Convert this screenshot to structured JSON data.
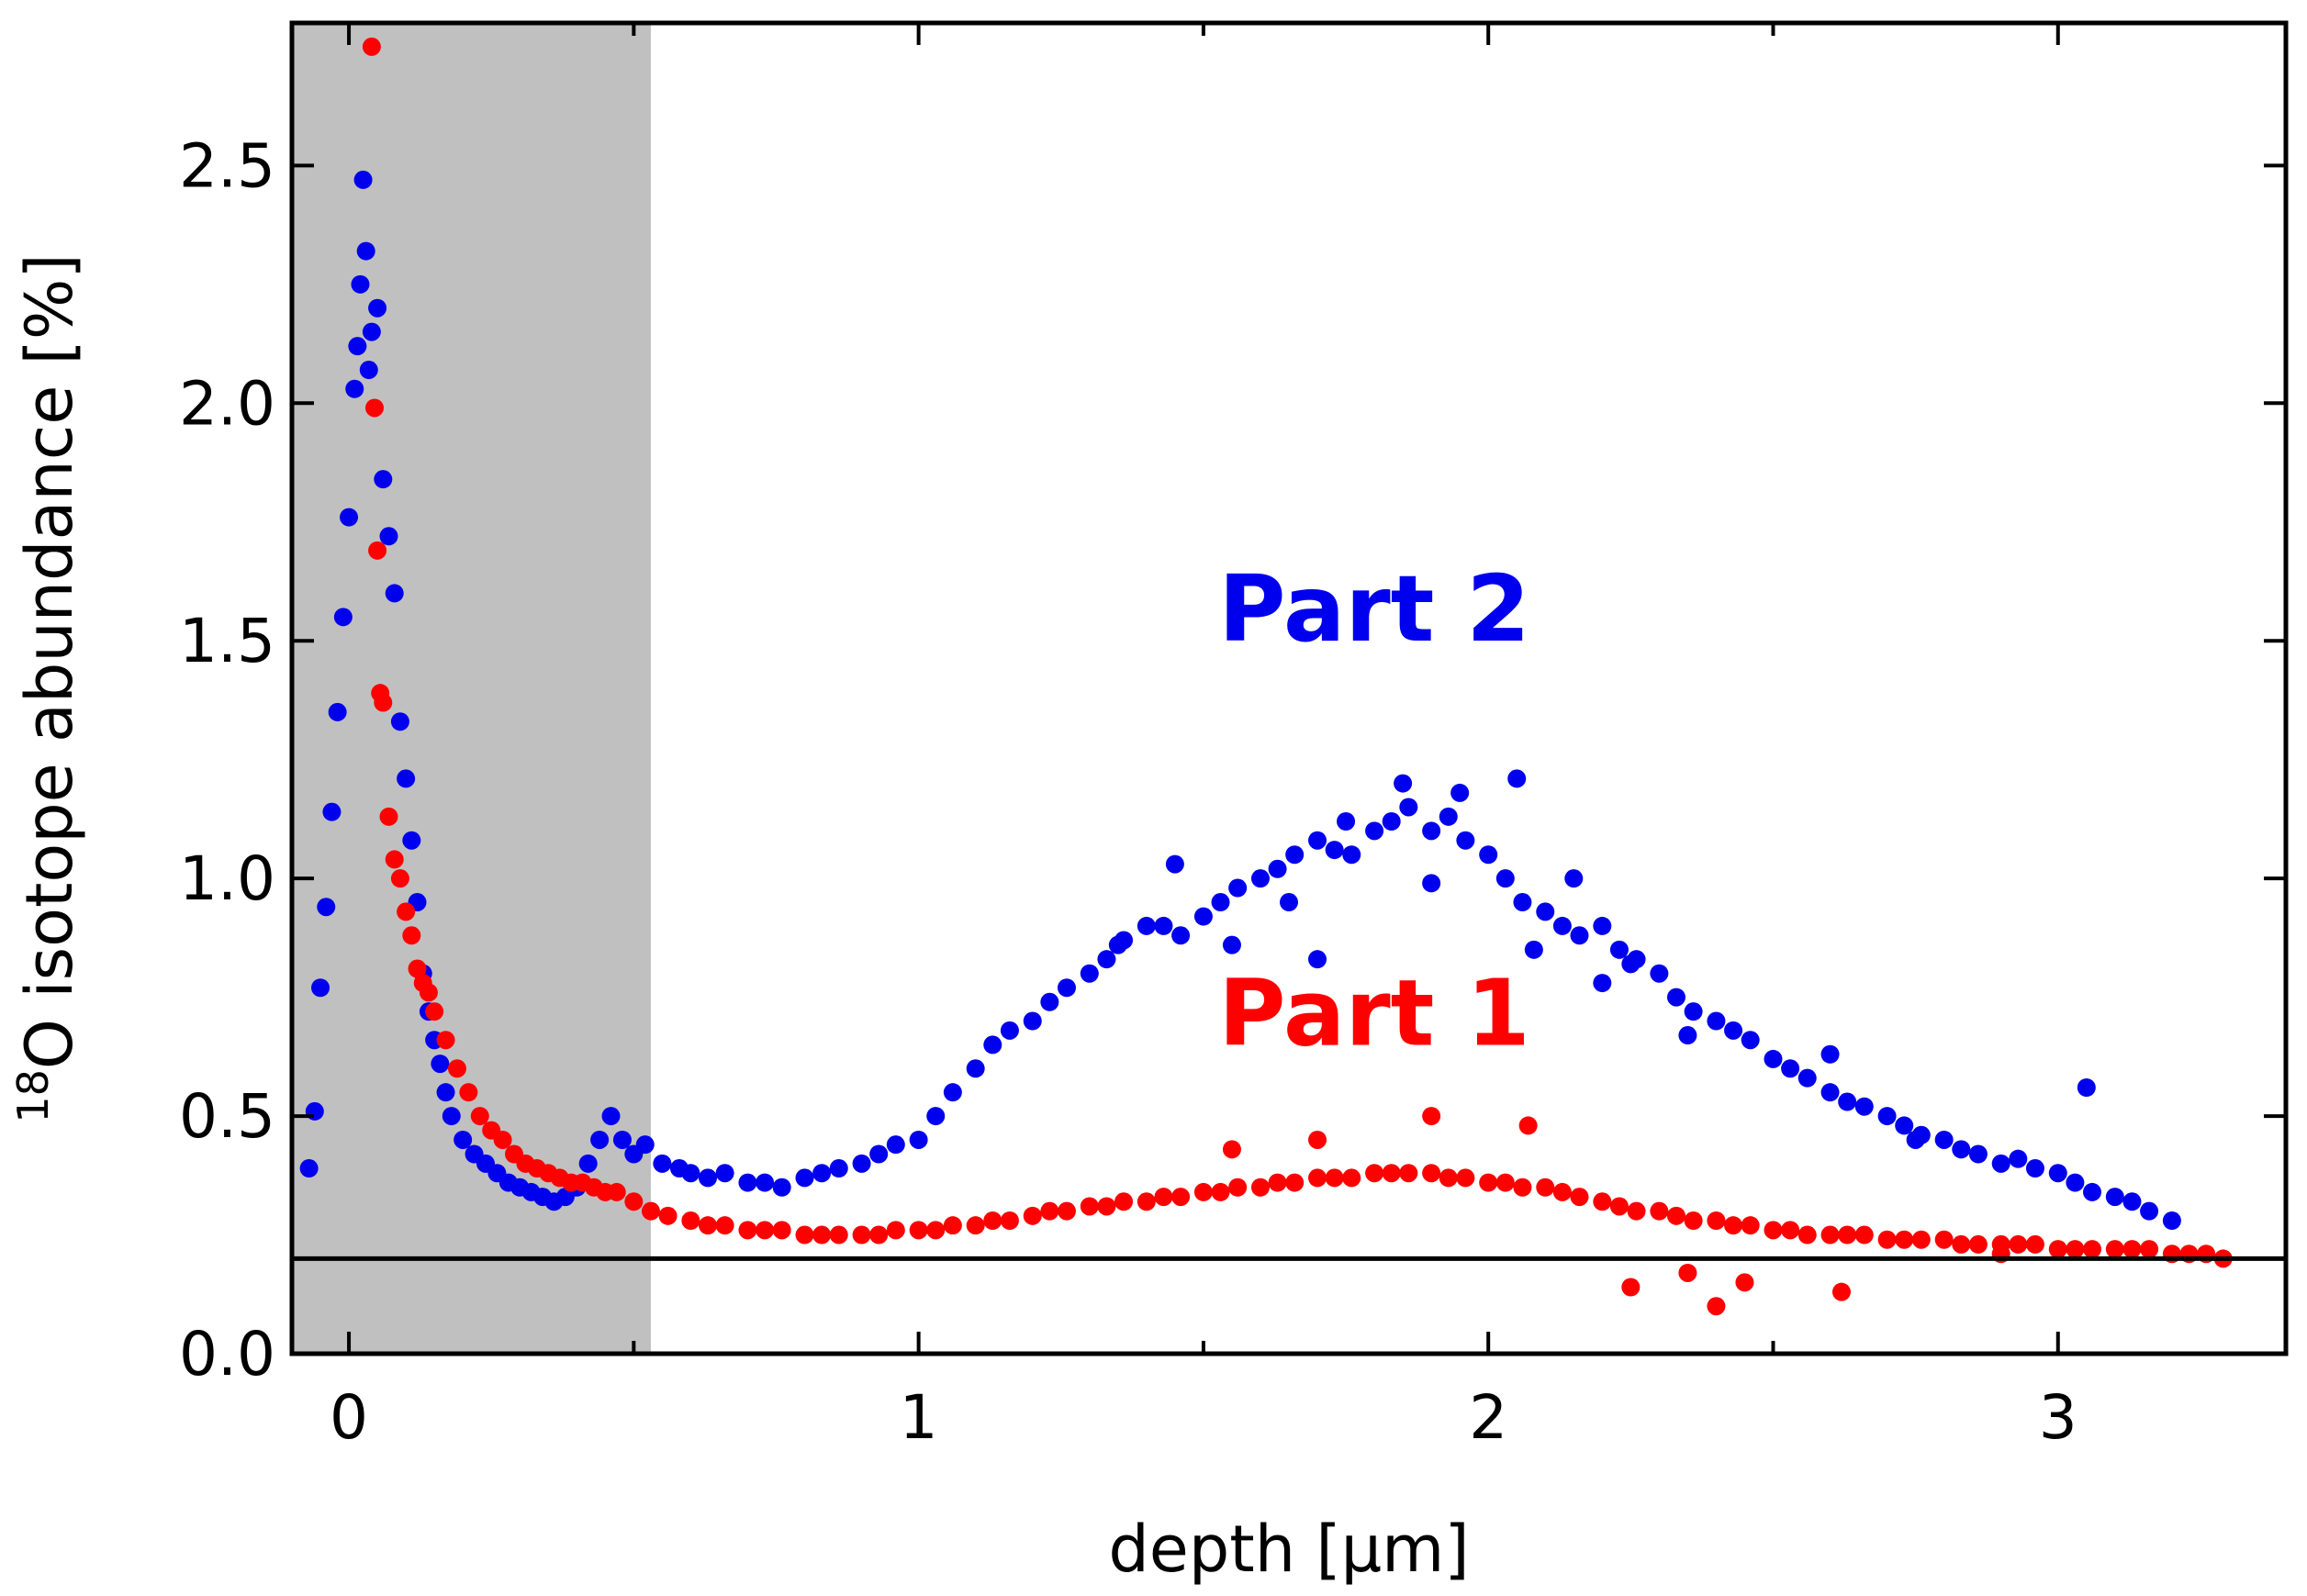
{
  "chart_data": {
    "type": "scatter",
    "title": "",
    "xlabel": "depth [µm]",
    "ylabel_sup": "18",
    "ylabel_main": "O isotope abundance [%]",
    "xlim": [
      -0.1,
      3.4
    ],
    "ylim": [
      0.0,
      2.8
    ],
    "xticks": [
      0,
      1,
      2,
      3
    ],
    "xtick_labels": [
      "0",
      "1",
      "2",
      "3"
    ],
    "xminor": [
      0.5,
      1.5,
      2.5
    ],
    "yticks": [
      0.0,
      0.5,
      1.0,
      1.5,
      2.0,
      2.5
    ],
    "ytick_labels": [
      "0.0",
      "0.5",
      "1.0",
      "1.5",
      "2.0",
      "2.5"
    ],
    "grid": false,
    "shaded_region": {
      "x0": -0.1,
      "x1": 0.53,
      "color": "#c0c0c0"
    },
    "reference_line": {
      "y": 0.2,
      "color": "#000000"
    },
    "annotations": [
      {
        "text": "Part 2",
        "x": 1.8,
        "y": 1.5,
        "color": "#0000ee"
      },
      {
        "text": "Part 1",
        "x": 1.8,
        "y": 0.65,
        "color": "#ff0000"
      }
    ],
    "series": [
      {
        "name": "Part 2",
        "color": "#0000ee",
        "x": [
          -0.07,
          -0.06,
          -0.05,
          -0.04,
          -0.03,
          -0.02,
          -0.01,
          0.0,
          0.01,
          0.015,
          0.02,
          0.025,
          0.03,
          0.035,
          0.04,
          0.05,
          0.06,
          0.07,
          0.08,
          0.09,
          0.1,
          0.11,
          0.12,
          0.13,
          0.14,
          0.15,
          0.16,
          0.17,
          0.18,
          0.2,
          0.22,
          0.24,
          0.26,
          0.28,
          0.3,
          0.32,
          0.34,
          0.36,
          0.38,
          0.4,
          0.42,
          0.44,
          0.46,
          0.48,
          0.5,
          0.52,
          0.55,
          0.58,
          0.6,
          0.63,
          0.66,
          0.7,
          0.73,
          0.76,
          0.8,
          0.83,
          0.86,
          0.9,
          0.93,
          0.96,
          1.0,
          1.03,
          1.06,
          1.1,
          1.13,
          1.16,
          1.2,
          1.23,
          1.26,
          1.3,
          1.33,
          1.36,
          1.4,
          1.43,
          1.46,
          1.5,
          1.53,
          1.56,
          1.6,
          1.63,
          1.66,
          1.7,
          1.73,
          1.76,
          1.8,
          1.83,
          1.86,
          1.9,
          1.93,
          1.96,
          2.0,
          2.03,
          2.06,
          2.1,
          2.13,
          2.16,
          2.2,
          2.23,
          2.26,
          2.3,
          2.33,
          2.36,
          2.4,
          2.43,
          2.46,
          2.5,
          2.53,
          2.56,
          2.6,
          2.63,
          2.66,
          2.7,
          2.73,
          2.76,
          2.8,
          2.83,
          2.86,
          2.9,
          2.93,
          2.96,
          3.0,
          3.03,
          3.06,
          3.1,
          3.13,
          3.16,
          3.2,
          1.45,
          1.55,
          1.65,
          1.75,
          1.85,
          1.95,
          2.05,
          2.15,
          2.25,
          1.35,
          1.7,
          1.9,
          2.08,
          2.2,
          2.35,
          2.6,
          2.75,
          3.05
        ],
        "y": [
          0.39,
          0.51,
          0.77,
          0.94,
          1.14,
          1.35,
          1.55,
          1.76,
          2.03,
          2.12,
          2.25,
          2.47,
          2.32,
          2.07,
          2.15,
          2.2,
          1.84,
          1.72,
          1.6,
          1.33,
          1.21,
          1.08,
          0.95,
          0.8,
          0.72,
          0.66,
          0.61,
          0.55,
          0.5,
          0.45,
          0.42,
          0.4,
          0.38,
          0.36,
          0.35,
          0.34,
          0.33,
          0.32,
          0.33,
          0.35,
          0.4,
          0.45,
          0.5,
          0.45,
          0.42,
          0.44,
          0.4,
          0.39,
          0.38,
          0.37,
          0.38,
          0.36,
          0.36,
          0.35,
          0.37,
          0.38,
          0.39,
          0.4,
          0.42,
          0.44,
          0.45,
          0.5,
          0.55,
          0.6,
          0.65,
          0.68,
          0.7,
          0.74,
          0.77,
          0.8,
          0.83,
          0.87,
          0.9,
          0.9,
          0.88,
          0.92,
          0.95,
          0.98,
          1.0,
          1.02,
          1.05,
          1.08,
          1.06,
          1.05,
          1.1,
          1.12,
          1.15,
          1.1,
          1.13,
          1.08,
          1.05,
          1.0,
          0.95,
          0.93,
          0.9,
          0.88,
          0.9,
          0.85,
          0.83,
          0.8,
          0.75,
          0.72,
          0.7,
          0.68,
          0.66,
          0.62,
          0.6,
          0.58,
          0.55,
          0.53,
          0.52,
          0.5,
          0.48,
          0.46,
          0.45,
          0.43,
          0.42,
          0.4,
          0.41,
          0.39,
          0.38,
          0.36,
          0.34,
          0.33,
          0.32,
          0.3,
          0.28,
          1.03,
          0.86,
          0.95,
          1.12,
          1.2,
          1.18,
          1.21,
          1.0,
          0.82,
          0.86,
          0.83,
          0.99,
          0.85,
          0.78,
          0.67,
          0.63,
          0.45,
          0.56
        ]
      },
      {
        "name": "Part 1",
        "color": "#ff0000",
        "x": [
          0.04,
          0.045,
          0.05,
          0.055,
          0.06,
          0.07,
          0.08,
          0.09,
          0.1,
          0.11,
          0.12,
          0.13,
          0.14,
          0.15,
          0.17,
          0.19,
          0.21,
          0.23,
          0.25,
          0.27,
          0.29,
          0.31,
          0.33,
          0.35,
          0.37,
          0.39,
          0.41,
          0.43,
          0.45,
          0.47,
          0.5,
          0.53,
          0.56,
          0.6,
          0.63,
          0.66,
          0.7,
          0.73,
          0.76,
          0.8,
          0.83,
          0.86,
          0.9,
          0.93,
          0.96,
          1.0,
          1.03,
          1.06,
          1.1,
          1.13,
          1.16,
          1.2,
          1.23,
          1.26,
          1.3,
          1.33,
          1.36,
          1.4,
          1.43,
          1.46,
          1.5,
          1.53,
          1.56,
          1.6,
          1.63,
          1.66,
          1.7,
          1.73,
          1.76,
          1.8,
          1.83,
          1.86,
          1.9,
          1.93,
          1.96,
          2.0,
          2.03,
          2.06,
          2.1,
          2.13,
          2.16,
          2.2,
          2.23,
          2.26,
          2.3,
          2.33,
          2.36,
          2.4,
          2.43,
          2.46,
          2.5,
          2.53,
          2.56,
          2.6,
          2.63,
          2.66,
          2.7,
          2.73,
          2.76,
          2.8,
          2.83,
          2.86,
          2.9,
          2.93,
          2.96,
          3.0,
          3.03,
          3.06,
          3.1,
          3.13,
          3.16,
          3.2,
          3.23,
          3.26,
          3.29,
          2.25,
          2.35,
          2.4,
          2.45,
          2.62,
          2.9,
          1.9,
          2.07,
          1.7,
          1.55
        ],
        "y": [
          2.75,
          1.99,
          1.69,
          1.39,
          1.37,
          1.13,
          1.04,
          1.0,
          0.93,
          0.88,
          0.81,
          0.78,
          0.76,
          0.72,
          0.66,
          0.6,
          0.55,
          0.5,
          0.47,
          0.45,
          0.42,
          0.4,
          0.39,
          0.38,
          0.37,
          0.36,
          0.36,
          0.35,
          0.34,
          0.34,
          0.32,
          0.3,
          0.29,
          0.28,
          0.27,
          0.27,
          0.26,
          0.26,
          0.26,
          0.25,
          0.25,
          0.25,
          0.25,
          0.25,
          0.26,
          0.26,
          0.26,
          0.27,
          0.27,
          0.28,
          0.28,
          0.29,
          0.3,
          0.3,
          0.31,
          0.31,
          0.32,
          0.32,
          0.33,
          0.33,
          0.34,
          0.34,
          0.35,
          0.35,
          0.36,
          0.36,
          0.37,
          0.37,
          0.37,
          0.38,
          0.38,
          0.38,
          0.38,
          0.37,
          0.37,
          0.36,
          0.36,
          0.35,
          0.35,
          0.34,
          0.33,
          0.32,
          0.31,
          0.3,
          0.3,
          0.29,
          0.28,
          0.28,
          0.27,
          0.27,
          0.26,
          0.26,
          0.25,
          0.25,
          0.25,
          0.25,
          0.24,
          0.24,
          0.24,
          0.24,
          0.23,
          0.23,
          0.23,
          0.23,
          0.23,
          0.22,
          0.22,
          0.22,
          0.22,
          0.22,
          0.22,
          0.21,
          0.21,
          0.21,
          0.2,
          0.14,
          0.17,
          0.1,
          0.15,
          0.13,
          0.21,
          0.5,
          0.48,
          0.45,
          0.43
        ]
      }
    ]
  }
}
